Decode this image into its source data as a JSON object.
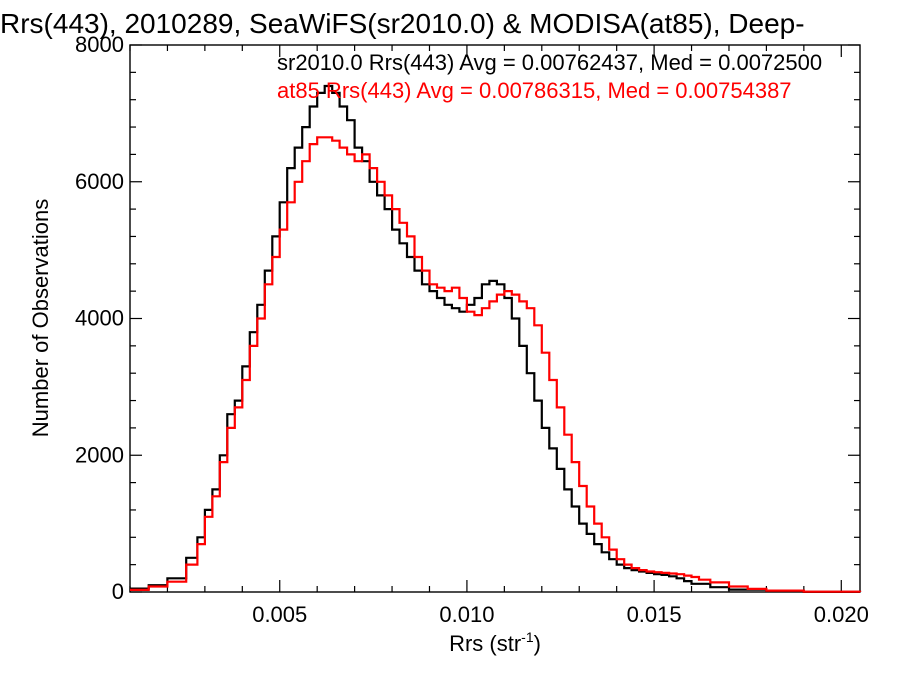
{
  "chart_data": {
    "type": "line",
    "title": "Rrs(443), 2010289, SeaWiFS(sr2010.0) & MODISA(at85), Deep-",
    "xlabel_main": "Rrs (str",
    "xlabel_sup": "-1",
    "xlabel_close": ")",
    "ylabel": "Number of Observations",
    "xlim": [
      0.001,
      0.0205
    ],
    "ylim": [
      0,
      8000
    ],
    "xticks": [
      0.005,
      0.01,
      0.015,
      0.02
    ],
    "xtick_labels": [
      "0.005",
      "0.010",
      "0.015",
      "0.020"
    ],
    "yticks": [
      0,
      2000,
      4000,
      6000,
      8000
    ],
    "ytick_labels": [
      "0",
      "2000",
      "4000",
      "6000",
      "8000"
    ],
    "grid": false,
    "legend_position": "top-right",
    "series": [
      {
        "name": "sr2010.0",
        "label": "sr2010.0 Rrs(443) Avg = 0.00762437, Med = 0.0072500",
        "color": "#000000",
        "points": [
          [
            0.001,
            50
          ],
          [
            0.0015,
            100
          ],
          [
            0.002,
            200
          ],
          [
            0.0025,
            500
          ],
          [
            0.0028,
            800
          ],
          [
            0.003,
            1200
          ],
          [
            0.0032,
            1500
          ],
          [
            0.0034,
            2000
          ],
          [
            0.0036,
            2600
          ],
          [
            0.0038,
            2800
          ],
          [
            0.004,
            3300
          ],
          [
            0.0042,
            3800
          ],
          [
            0.0044,
            4200
          ],
          [
            0.0046,
            4700
          ],
          [
            0.0048,
            5200
          ],
          [
            0.005,
            5700
          ],
          [
            0.0052,
            6200
          ],
          [
            0.0054,
            6500
          ],
          [
            0.0056,
            6800
          ],
          [
            0.0058,
            7100
          ],
          [
            0.006,
            7300
          ],
          [
            0.0062,
            7400
          ],
          [
            0.0064,
            7300
          ],
          [
            0.0066,
            7100
          ],
          [
            0.0068,
            6900
          ],
          [
            0.007,
            6500
          ],
          [
            0.0072,
            6300
          ],
          [
            0.0074,
            6000
          ],
          [
            0.0076,
            5800
          ],
          [
            0.0078,
            5600
          ],
          [
            0.008,
            5300
          ],
          [
            0.0082,
            5100
          ],
          [
            0.0084,
            4900
          ],
          [
            0.0086,
            4700
          ],
          [
            0.0088,
            4500
          ],
          [
            0.009,
            4400
          ],
          [
            0.0092,
            4300
          ],
          [
            0.0094,
            4200
          ],
          [
            0.0096,
            4150
          ],
          [
            0.0098,
            4100
          ],
          [
            0.01,
            4200
          ],
          [
            0.0102,
            4300
          ],
          [
            0.0104,
            4500
          ],
          [
            0.0106,
            4550
          ],
          [
            0.0108,
            4500
          ],
          [
            0.011,
            4300
          ],
          [
            0.0112,
            4000
          ],
          [
            0.0114,
            3600
          ],
          [
            0.0116,
            3200
          ],
          [
            0.0118,
            2800
          ],
          [
            0.012,
            2400
          ],
          [
            0.0122,
            2100
          ],
          [
            0.0124,
            1800
          ],
          [
            0.0126,
            1500
          ],
          [
            0.0128,
            1250
          ],
          [
            0.013,
            1000
          ],
          [
            0.0132,
            850
          ],
          [
            0.0134,
            700
          ],
          [
            0.0136,
            580
          ],
          [
            0.0138,
            480
          ],
          [
            0.014,
            400
          ],
          [
            0.0142,
            350
          ],
          [
            0.0144,
            320
          ],
          [
            0.0146,
            300
          ],
          [
            0.0148,
            280
          ],
          [
            0.015,
            260
          ],
          [
            0.0152,
            250
          ],
          [
            0.0154,
            230
          ],
          [
            0.0156,
            200
          ],
          [
            0.0158,
            160
          ],
          [
            0.016,
            120
          ],
          [
            0.0165,
            70
          ],
          [
            0.017,
            35
          ],
          [
            0.018,
            10
          ],
          [
            0.019,
            2
          ],
          [
            0.0205,
            0
          ]
        ]
      },
      {
        "name": "at85",
        "label": "at85 Rrs(443) Avg = 0.00786315, Med = 0.00754387",
        "color": "#ff0000",
        "points": [
          [
            0.001,
            30
          ],
          [
            0.0015,
            80
          ],
          [
            0.002,
            150
          ],
          [
            0.0025,
            400
          ],
          [
            0.0028,
            700
          ],
          [
            0.003,
            1100
          ],
          [
            0.0032,
            1400
          ],
          [
            0.0034,
            1900
          ],
          [
            0.0036,
            2400
          ],
          [
            0.0038,
            2700
          ],
          [
            0.004,
            3100
          ],
          [
            0.0042,
            3600
          ],
          [
            0.0044,
            4000
          ],
          [
            0.0046,
            4500
          ],
          [
            0.0048,
            4900
          ],
          [
            0.005,
            5300
          ],
          [
            0.0052,
            5700
          ],
          [
            0.0054,
            6000
          ],
          [
            0.0056,
            6300
          ],
          [
            0.0058,
            6550
          ],
          [
            0.006,
            6650
          ],
          [
            0.0062,
            6650
          ],
          [
            0.0064,
            6600
          ],
          [
            0.0066,
            6500
          ],
          [
            0.0068,
            6400
          ],
          [
            0.007,
            6300
          ],
          [
            0.0072,
            6400
          ],
          [
            0.0074,
            6200
          ],
          [
            0.0076,
            6000
          ],
          [
            0.0078,
            5800
          ],
          [
            0.008,
            5600
          ],
          [
            0.0082,
            5400
          ],
          [
            0.0084,
            5200
          ],
          [
            0.0086,
            4900
          ],
          [
            0.0088,
            4700
          ],
          [
            0.009,
            4500
          ],
          [
            0.0092,
            4450
          ],
          [
            0.0094,
            4400
          ],
          [
            0.0096,
            4450
          ],
          [
            0.0098,
            4300
          ],
          [
            0.01,
            4100
          ],
          [
            0.0102,
            4050
          ],
          [
            0.0104,
            4150
          ],
          [
            0.0106,
            4250
          ],
          [
            0.0108,
            4350
          ],
          [
            0.011,
            4400
          ],
          [
            0.0112,
            4350
          ],
          [
            0.0114,
            4250
          ],
          [
            0.0116,
            4150
          ],
          [
            0.0118,
            3900
          ],
          [
            0.012,
            3500
          ],
          [
            0.0122,
            3100
          ],
          [
            0.0124,
            2700
          ],
          [
            0.0126,
            2300
          ],
          [
            0.0128,
            1900
          ],
          [
            0.013,
            1550
          ],
          [
            0.0132,
            1250
          ],
          [
            0.0134,
            1000
          ],
          [
            0.0136,
            800
          ],
          [
            0.0138,
            620
          ],
          [
            0.014,
            480
          ],
          [
            0.0142,
            400
          ],
          [
            0.0144,
            350
          ],
          [
            0.0146,
            320
          ],
          [
            0.0148,
            300
          ],
          [
            0.015,
            290
          ],
          [
            0.0152,
            280
          ],
          [
            0.0154,
            270
          ],
          [
            0.0156,
            260
          ],
          [
            0.0158,
            240
          ],
          [
            0.016,
            220
          ],
          [
            0.0162,
            180
          ],
          [
            0.0165,
            140
          ],
          [
            0.017,
            80
          ],
          [
            0.0175,
            45
          ],
          [
            0.018,
            20
          ],
          [
            0.019,
            5
          ],
          [
            0.0205,
            0
          ]
        ]
      }
    ]
  }
}
